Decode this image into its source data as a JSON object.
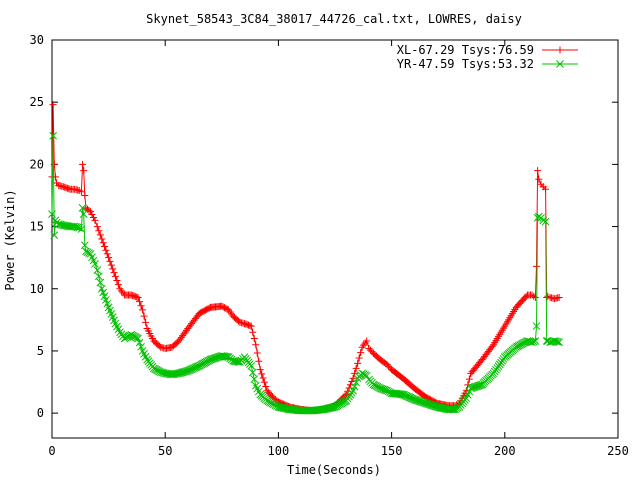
{
  "chart_data": {
    "type": "line",
    "title": "Skynet_58543_3C84_38017_44726_cal.txt, LOWRES, daisy",
    "xlabel": "Time(Seconds)",
    "ylabel": "Power (Kelvin)",
    "xlim": [
      0,
      250
    ],
    "ylim": [
      -2,
      30
    ],
    "xticks": [
      0,
      50,
      100,
      150,
      200,
      250
    ],
    "yticks": [
      0,
      5,
      10,
      15,
      20,
      25,
      30
    ],
    "grid": false,
    "legend_position": "top-right",
    "series": [
      {
        "name": "XL-67.29 Tsys:76.59",
        "color": "#ff0000",
        "marker": "plus",
        "x": [
          0,
          0.5,
          1,
          1.5,
          2,
          3,
          5,
          8,
          10,
          12,
          13,
          13.5,
          14,
          14.5,
          15,
          17,
          19,
          20,
          22,
          25,
          28,
          30,
          32,
          35,
          38,
          40,
          42,
          45,
          48,
          50,
          53,
          56,
          60,
          65,
          70,
          75,
          78,
          80,
          83,
          85,
          88,
          90,
          92,
          95,
          98,
          100,
          105,
          110,
          115,
          120,
          125,
          130,
          133,
          135,
          137,
          139,
          140,
          142,
          145,
          148,
          150,
          155,
          160,
          165,
          170,
          175,
          178,
          180,
          183,
          185,
          190,
          195,
          200,
          205,
          210,
          212,
          213.5,
          214,
          214.5,
          215,
          216,
          217,
          218,
          218.5,
          219,
          220,
          222,
          224
        ],
        "values": [
          19,
          24.8,
          20,
          19,
          18.5,
          18.3,
          18.2,
          18,
          18,
          17.9,
          17.8,
          20,
          19.5,
          17.5,
          16.5,
          16.2,
          15.5,
          15,
          14,
          12.5,
          11,
          10,
          9.5,
          9.5,
          9.3,
          8.3,
          6.8,
          5.8,
          5.3,
          5.2,
          5.3,
          5.8,
          6.8,
          8,
          8.5,
          8.6,
          8.3,
          7.8,
          7.3,
          7.2,
          7,
          5.5,
          3.5,
          1.8,
          1.2,
          0.9,
          0.5,
          0.3,
          0.2,
          0.3,
          0.6,
          1.5,
          2.8,
          4,
          5.3,
          5.8,
          5.2,
          4.8,
          4.3,
          3.9,
          3.5,
          2.8,
          2,
          1.3,
          0.8,
          0.6,
          0.6,
          0.8,
          1.8,
          3.2,
          4.3,
          5.5,
          7,
          8.5,
          9.5,
          9.5,
          9.3,
          11.8,
          19.5,
          18.8,
          18.4,
          18.2,
          18,
          9.3,
          9.4,
          9.3,
          9.2,
          9.3
        ]
      },
      {
        "name": "YR-47.59 Tsys:53.32",
        "color": "#00c000",
        "marker": "cross",
        "x": [
          0,
          0.5,
          1,
          1.5,
          2,
          3,
          5,
          8,
          10,
          12,
          13,
          13.5,
          14,
          14.5,
          15,
          17,
          19,
          20,
          22,
          25,
          28,
          30,
          32,
          35,
          38,
          40,
          42,
          45,
          48,
          50,
          53,
          56,
          60,
          65,
          70,
          75,
          78,
          80,
          83,
          85,
          88,
          90,
          92,
          95,
          98,
          100,
          105,
          110,
          115,
          120,
          125,
          130,
          133,
          135,
          137,
          139,
          140,
          142,
          145,
          148,
          150,
          155,
          160,
          165,
          170,
          175,
          178,
          180,
          183,
          185,
          190,
          195,
          200,
          205,
          210,
          212,
          213.5,
          214,
          214.5,
          215,
          216,
          217,
          218,
          218.5,
          219,
          220,
          222,
          224
        ],
        "values": [
          16,
          22.3,
          14.3,
          15.5,
          15.3,
          15.2,
          15.1,
          15,
          15,
          14.9,
          14.8,
          16.5,
          16,
          13.5,
          13,
          12.8,
          12,
          11.5,
          10,
          8.5,
          7.2,
          6.5,
          6,
          6.3,
          6,
          5,
          4.3,
          3.6,
          3.3,
          3.2,
          3.1,
          3.2,
          3.4,
          3.8,
          4.3,
          4.6,
          4.5,
          4.2,
          4.1,
          4.5,
          3.8,
          2.2,
          1.5,
          1,
          0.7,
          0.5,
          0.3,
          0.2,
          0.2,
          0.3,
          0.5,
          1,
          1.8,
          2.8,
          3.2,
          3,
          2.7,
          2.3,
          2,
          1.8,
          1.6,
          1.5,
          1.1,
          0.8,
          0.5,
          0.3,
          0.3,
          0.5,
          1.2,
          2,
          2.3,
          3.2,
          4.5,
          5.3,
          5.8,
          5.7,
          5.8,
          7,
          15.7,
          15.8,
          15.7,
          15.5,
          15.4,
          5.8,
          5.8,
          5.7,
          5.8,
          5.7
        ]
      }
    ]
  }
}
